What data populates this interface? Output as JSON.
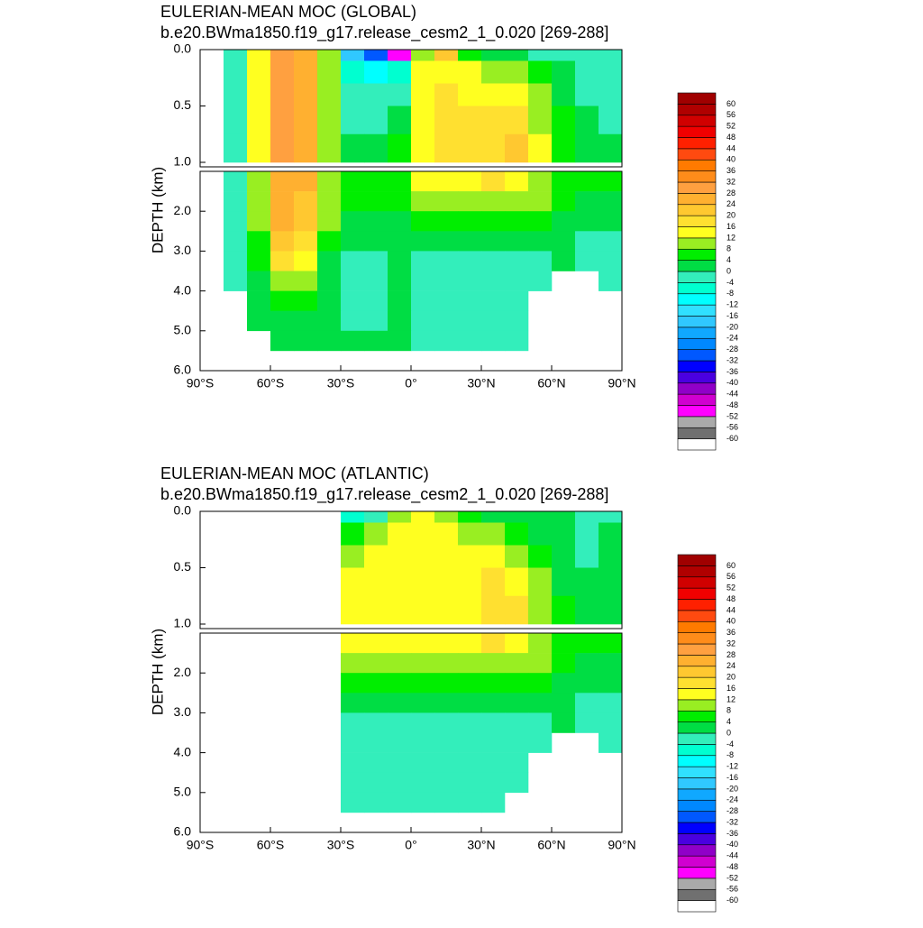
{
  "chart_data": [
    {
      "type": "contour",
      "title": "EULERIAN-MEAN MOC (GLOBAL)",
      "subtitle": "b.e20.BWma1850.f19_g17.release_cesm2_1_0.020 [269-288]",
      "y_label": "DEPTH (km)",
      "xlim": [
        -90,
        90
      ],
      "xticks": [
        {
          "value": -90,
          "label": "90°S"
        },
        {
          "value": -60,
          "label": "60°S"
        },
        {
          "value": -30,
          "label": "30°S"
        },
        {
          "value": 0,
          "label": "0°"
        },
        {
          "value": 30,
          "label": "30°N"
        },
        {
          "value": 60,
          "label": "60°N"
        },
        {
          "value": 90,
          "label": "90°N"
        }
      ],
      "panels": [
        {
          "ylim": [
            0,
            1.04
          ],
          "yticks": [
            {
              "value": 0,
              "label": "0.0"
            },
            0.5,
            {
              "value": 1,
              "label": "1.0"
            }
          ]
        },
        {
          "ylim": [
            1,
            6
          ],
          "yticks": [
            {
              "value": 2,
              "label": "2.0"
            },
            {
              "value": 3,
              "label": "3.0"
            },
            {
              "value": 4,
              "label": "4.0"
            },
            {
              "value": 5,
              "label": "5.0"
            },
            {
              "value": 6,
              "label": "6.0"
            }
          ]
        }
      ],
      "x_edges": [
        -90,
        -80,
        -70,
        -60,
        -50,
        -40,
        -30,
        -20,
        -10,
        0,
        10,
        20,
        30,
        40,
        50,
        60,
        70,
        80,
        90
      ],
      "depth_edges": [
        0,
        0.1,
        0.3,
        0.5,
        0.75,
        1,
        1.5,
        2,
        2.5,
        3,
        3.5,
        4,
        4.5,
        5,
        5.5
      ],
      "z": [
        [
          null,
          -2,
          14,
          30,
          26,
          10,
          -20,
          -30,
          -50,
          10,
          20,
          6,
          2,
          2,
          -2,
          -2,
          -2,
          -2
        ],
        [
          null,
          -2,
          14,
          30,
          26,
          10,
          -6,
          -10,
          -6,
          14,
          14,
          14,
          10,
          10,
          6,
          2,
          -2,
          -2
        ],
        [
          null,
          -2,
          14,
          30,
          26,
          10,
          -2,
          -2,
          -2,
          14,
          18,
          14,
          14,
          14,
          10,
          2,
          -2,
          -2
        ],
        [
          null,
          -2,
          14,
          30,
          26,
          10,
          -2,
          -2,
          2,
          14,
          18,
          18,
          18,
          18,
          10,
          6,
          2,
          -2
        ],
        [
          null,
          -2,
          14,
          30,
          26,
          10,
          2,
          2,
          6,
          14,
          18,
          18,
          18,
          22,
          14,
          6,
          2,
          2
        ],
        [
          null,
          -2,
          10,
          26,
          26,
          10,
          6,
          6,
          6,
          14,
          14,
          14,
          18,
          14,
          10,
          6,
          6,
          6
        ],
        [
          null,
          -2,
          10,
          26,
          22,
          10,
          6,
          6,
          6,
          10,
          10,
          10,
          10,
          10,
          10,
          6,
          2,
          2
        ],
        [
          null,
          -2,
          10,
          26,
          22,
          10,
          2,
          2,
          2,
          6,
          6,
          6,
          6,
          6,
          6,
          2,
          2,
          2
        ],
        [
          null,
          -2,
          6,
          22,
          18,
          6,
          2,
          2,
          2,
          2,
          2,
          2,
          2,
          2,
          2,
          2,
          -2,
          -2
        ],
        [
          null,
          -2,
          6,
          18,
          14,
          2,
          -2,
          -2,
          2,
          -2,
          -2,
          -2,
          -2,
          -2,
          -2,
          2,
          -2,
          -2
        ],
        [
          null,
          -2,
          2,
          10,
          10,
          2,
          -2,
          -2,
          2,
          -2,
          -2,
          -2,
          -2,
          -2,
          -2,
          null,
          null,
          -2
        ],
        [
          null,
          null,
          2,
          6,
          6,
          2,
          -2,
          -2,
          2,
          -2,
          -2,
          -2,
          -2,
          -2,
          null,
          null,
          null,
          null
        ],
        [
          null,
          null,
          2,
          2,
          2,
          2,
          -2,
          -2,
          2,
          -2,
          -2,
          -2,
          -2,
          -2,
          null,
          null,
          null,
          null
        ],
        [
          null,
          null,
          null,
          2,
          2,
          2,
          2,
          2,
          2,
          -2,
          -2,
          -2,
          -2,
          -2,
          null,
          null,
          null,
          null
        ]
      ],
      "levels": [
        -60,
        -56,
        -52,
        -48,
        -44,
        -40,
        -36,
        -32,
        -28,
        -24,
        -20,
        -16,
        -12,
        -8,
        -4,
        0,
        4,
        8,
        12,
        16,
        20,
        24,
        28,
        32,
        36,
        40,
        44,
        48,
        52,
        56,
        60
      ],
      "colors": [
        "#ffffff",
        "#707070",
        "#aaaaaa",
        "#ff00ff",
        "#d000d0",
        "#9000c8",
        "#4a00e0",
        "#0000ff",
        "#0058ff",
        "#0088ff",
        "#10a8ff",
        "#30c8ff",
        "#30e0ff",
        "#00ffff",
        "#00ffd0",
        "#33eebb",
        "#00dd44",
        "#00ee00",
        "#99ee22",
        "#ffff20",
        "#ffe030",
        "#ffc830",
        "#ffb030",
        "#ffa040",
        "#ff8c1a",
        "#ff7a00",
        "#ff4a10",
        "#ff2000",
        "#f00000",
        "#d00000",
        "#b00000",
        "#a00000"
      ]
    },
    {
      "type": "contour",
      "title": "EULERIAN-MEAN MOC (ATLANTIC)",
      "subtitle": "b.e20.BWma1850.f19_g17.release_cesm2_1_0.020 [269-288]",
      "y_label": "DEPTH (km)",
      "xlim": [
        -90,
        90
      ],
      "xticks": [
        {
          "value": -90,
          "label": "90°S"
        },
        {
          "value": -60,
          "label": "60°S"
        },
        {
          "value": -30,
          "label": "30°S"
        },
        {
          "value": 0,
          "label": "0°"
        },
        {
          "value": 30,
          "label": "30°N"
        },
        {
          "value": 60,
          "label": "60°N"
        },
        {
          "value": 90,
          "label": "90°N"
        }
      ],
      "panels": [
        {
          "ylim": [
            0,
            1.04
          ],
          "yticks": [
            {
              "value": 0,
              "label": "0.0"
            },
            0.5,
            {
              "value": 1,
              "label": "1.0"
            }
          ]
        },
        {
          "ylim": [
            1,
            6
          ],
          "yticks": [
            {
              "value": 2,
              "label": "2.0"
            },
            {
              "value": 3,
              "label": "3.0"
            },
            {
              "value": 4,
              "label": "4.0"
            },
            {
              "value": 5,
              "label": "5.0"
            },
            {
              "value": 6,
              "label": "6.0"
            }
          ]
        }
      ],
      "x_edges": [
        -90,
        -80,
        -70,
        -60,
        -50,
        -40,
        -30,
        -20,
        -10,
        0,
        10,
        20,
        30,
        40,
        50,
        60,
        70,
        80,
        90
      ],
      "depth_edges": [
        0,
        0.1,
        0.3,
        0.5,
        0.75,
        1,
        1.5,
        2,
        2.5,
        3,
        3.5,
        4,
        4.5,
        5,
        5.5
      ],
      "z": [
        [
          null,
          null,
          null,
          null,
          null,
          null,
          -6,
          -2,
          10,
          14,
          10,
          6,
          2,
          2,
          2,
          2,
          -2,
          -2
        ],
        [
          null,
          null,
          null,
          null,
          null,
          null,
          6,
          10,
          14,
          14,
          14,
          10,
          10,
          6,
          2,
          2,
          -2,
          2
        ],
        [
          null,
          null,
          null,
          null,
          null,
          null,
          10,
          14,
          14,
          14,
          14,
          14,
          14,
          10,
          6,
          2,
          -2,
          2
        ],
        [
          null,
          null,
          null,
          null,
          null,
          null,
          14,
          14,
          14,
          14,
          14,
          14,
          18,
          14,
          10,
          2,
          2,
          2
        ],
        [
          null,
          null,
          null,
          null,
          null,
          null,
          14,
          14,
          14,
          14,
          14,
          14,
          18,
          18,
          10,
          6,
          2,
          2
        ],
        [
          null,
          null,
          null,
          null,
          null,
          null,
          14,
          14,
          14,
          14,
          14,
          14,
          18,
          14,
          10,
          6,
          6,
          6
        ],
        [
          null,
          null,
          null,
          null,
          null,
          null,
          10,
          10,
          10,
          10,
          10,
          10,
          10,
          10,
          10,
          6,
          2,
          2
        ],
        [
          null,
          null,
          null,
          null,
          null,
          null,
          6,
          6,
          6,
          6,
          6,
          6,
          6,
          6,
          6,
          2,
          2,
          2
        ],
        [
          null,
          null,
          null,
          null,
          null,
          null,
          2,
          2,
          2,
          2,
          2,
          2,
          2,
          2,
          2,
          2,
          -2,
          -2
        ],
        [
          null,
          null,
          null,
          null,
          null,
          null,
          -2,
          -2,
          -2,
          -2,
          -2,
          -2,
          -2,
          -2,
          -2,
          2,
          -2,
          -2
        ],
        [
          null,
          null,
          null,
          null,
          null,
          null,
          -2,
          -2,
          -2,
          -2,
          -2,
          -2,
          -2,
          -2,
          -2,
          null,
          null,
          -2
        ],
        [
          null,
          null,
          null,
          null,
          null,
          null,
          -2,
          -2,
          -2,
          -2,
          -2,
          -2,
          -2,
          -2,
          null,
          null,
          null,
          null
        ],
        [
          null,
          null,
          null,
          null,
          null,
          null,
          -2,
          -2,
          -2,
          -2,
          -2,
          -2,
          -2,
          -2,
          null,
          null,
          null,
          null
        ],
        [
          null,
          null,
          null,
          null,
          null,
          null,
          -2,
          -2,
          -2,
          -2,
          -2,
          -2,
          -2,
          null,
          null,
          null,
          null,
          null
        ]
      ],
      "levels": [
        -60,
        -56,
        -52,
        -48,
        -44,
        -40,
        -36,
        -32,
        -28,
        -24,
        -20,
        -16,
        -12,
        -8,
        -4,
        0,
        4,
        8,
        12,
        16,
        20,
        24,
        28,
        32,
        36,
        40,
        44,
        48,
        52,
        56,
        60
      ],
      "colors": [
        "#ffffff",
        "#707070",
        "#aaaaaa",
        "#ff00ff",
        "#d000d0",
        "#9000c8",
        "#4a00e0",
        "#0000ff",
        "#0058ff",
        "#0088ff",
        "#10a8ff",
        "#30c8ff",
        "#30e0ff",
        "#00ffff",
        "#00ffd0",
        "#33eebb",
        "#00dd44",
        "#00ee00",
        "#99ee22",
        "#ffff20",
        "#ffe030",
        "#ffc830",
        "#ffb030",
        "#ffa040",
        "#ff8c1a",
        "#ff7a00",
        "#ff4a10",
        "#ff2000",
        "#f00000",
        "#d00000",
        "#b00000",
        "#a00000"
      ]
    }
  ]
}
